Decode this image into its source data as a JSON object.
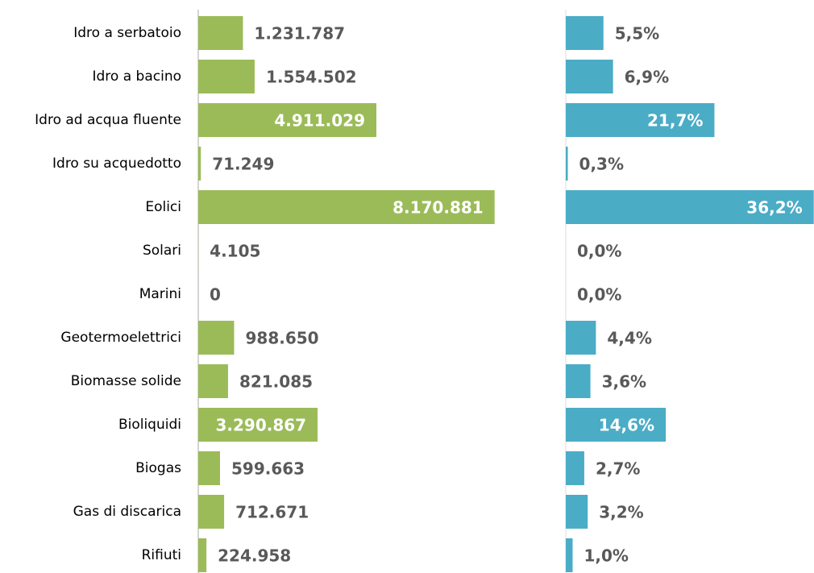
{
  "chart_data": [
    {
      "type": "bar",
      "orientation": "horizontal",
      "color": "#9bbb59",
      "categories": [
        "Idro a serbatoio",
        "Idro a bacino",
        "Idro ad acqua fluente",
        "Idro su acquedotto",
        "Eolici",
        "Solari",
        "Marini",
        "Geotermoelettrici",
        "Biomasse solide",
        "Bioliquidi",
        "Biogas",
        "Gas di discarica",
        "Rifiuti"
      ],
      "values": [
        1231787,
        1554502,
        4911029,
        71249,
        8170881,
        4105,
        0,
        988650,
        821085,
        3290867,
        599663,
        712671,
        224958
      ],
      "value_labels": [
        "1.231.787",
        "1.554.502",
        "4.911.029",
        "71.249",
        "8.170.881",
        "4.105",
        "0",
        "988.650",
        "821.085",
        "3.290.867",
        "599.663",
        "712.671",
        "224.958"
      ],
      "xlim": [
        0,
        9000000
      ]
    },
    {
      "type": "bar",
      "orientation": "horizontal",
      "color": "#4bacc6",
      "values": [
        5.5,
        6.9,
        21.7,
        0.3,
        36.2,
        0.0,
        0.0,
        4.4,
        3.6,
        14.6,
        2.7,
        3.2,
        1.0
      ],
      "value_labels": [
        "5,5%",
        "6,9%",
        "21,7%",
        "0,3%",
        "36,2%",
        "0,0%",
        "0,0%",
        "4,4%",
        "3,6%",
        "14,6%",
        "2,7%",
        "3,2%",
        "1,0%"
      ],
      "xlim": [
        0,
        40
      ]
    }
  ]
}
